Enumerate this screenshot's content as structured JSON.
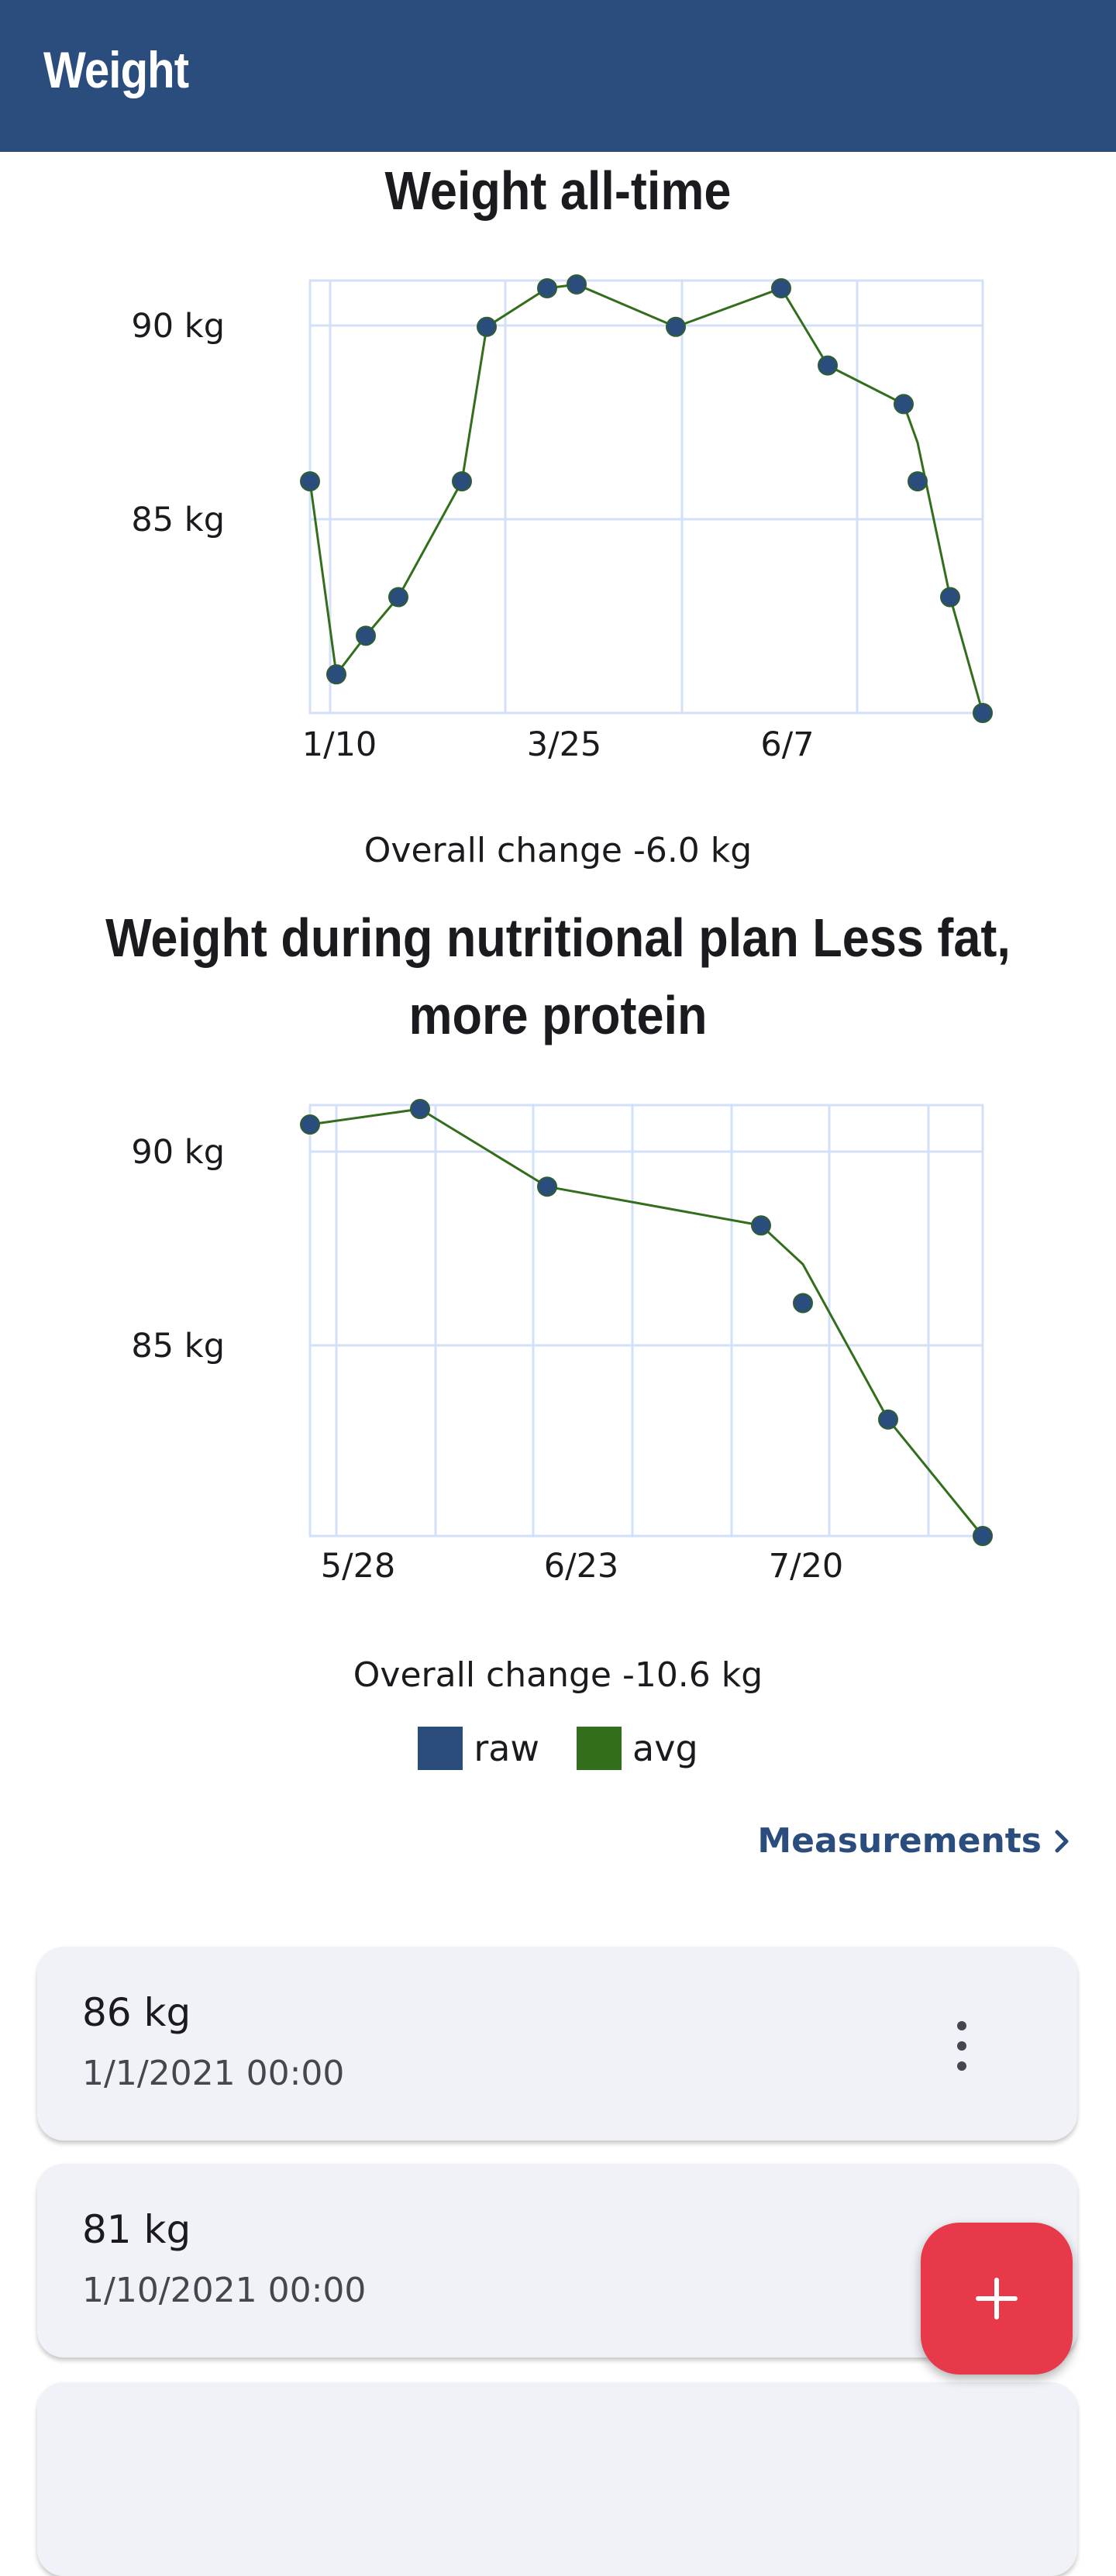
{
  "app_bar": {
    "title": "Weight"
  },
  "charts": {
    "all_time": {
      "title": "Weight all-time",
      "overall": "Overall change -6.0 kg"
    },
    "plan": {
      "title": "Weight during nutritional plan Less fat, more protein",
      "overall": "Overall change -10.6 kg"
    }
  },
  "legend": {
    "raw": {
      "label": "raw",
      "color": "#2b4d7e"
    },
    "avg": {
      "label": "avg",
      "color": "#336e1c"
    }
  },
  "measurements_link": {
    "label": "Measurements",
    "icon": "chevron-right-icon"
  },
  "entries": [
    {
      "value": "86 kg",
      "date": "1/1/2021 00:00",
      "menu_icon": "more-vert-icon"
    },
    {
      "value": "81 kg",
      "date": "1/10/2021 00:00",
      "menu_icon": "more-vert-icon"
    }
  ],
  "fab": {
    "icon": "add-icon",
    "color": "#e8394b"
  },
  "chart_data": [
    {
      "type": "line",
      "title": "Weight all-time",
      "ylabel": "",
      "y_tick_labels": [
        "90 kg",
        "85 kg"
      ],
      "x_tick_labels": [
        "1/10",
        "3/25",
        "6/7"
      ],
      "x": [
        "1/1",
        "1/10",
        "1/20",
        "1/31",
        "2/21",
        "3/1",
        "3/22",
        "4/1",
        "5/4",
        "5/31",
        "6/15",
        "7/10",
        "7/15",
        "7/25",
        "8/4"
      ],
      "series": [
        {
          "name": "raw",
          "values": [
            86,
            81,
            82,
            83,
            86,
            90,
            91,
            91.1,
            90,
            91,
            89,
            88,
            86,
            83,
            80
          ]
        },
        {
          "name": "avg",
          "values": [
            86,
            81,
            82,
            83,
            86,
            90,
            91,
            91.1,
            90,
            91,
            89,
            88,
            87,
            83,
            80
          ]
        }
      ],
      "ylim": [
        80,
        91.2
      ],
      "grid": true,
      "overall_change": "Overall change -6.0 kg"
    },
    {
      "type": "line",
      "title": "Weight during nutritional plan Less fat, more protein",
      "ylabel": "",
      "y_tick_labels": [
        "90 kg",
        "85 kg"
      ],
      "x_tick_labels": [
        "5/28",
        "6/23",
        "7/20"
      ],
      "x": [
        "5/25",
        "6/7",
        "6/22",
        "7/17",
        "7/22",
        "8/1",
        "8/12"
      ],
      "series": [
        {
          "name": "raw",
          "values": [
            90.6,
            91,
            89,
            88,
            86,
            83,
            80
          ]
        },
        {
          "name": "avg",
          "values": [
            90.6,
            91,
            89,
            88,
            87,
            83,
            80
          ]
        }
      ],
      "ylim": [
        80,
        91.1
      ],
      "grid": true,
      "legend": "bottom-center",
      "overall_change": "Overall change -10.6 kg"
    }
  ]
}
